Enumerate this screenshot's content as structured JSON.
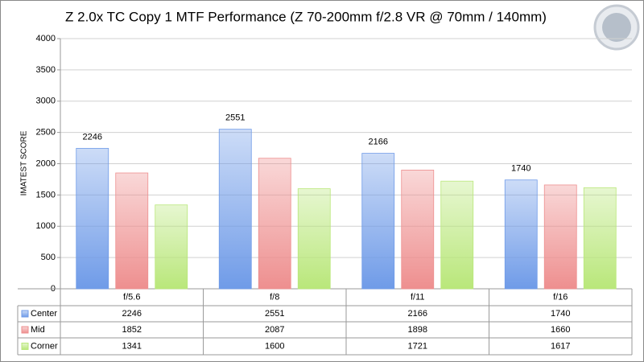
{
  "chart_data": {
    "type": "bar",
    "title": "Z 2.0x TC Copy 1 MTF Performance (Z 70-200mm f/2.8 VR @ 70mm / 140mm)",
    "y_label": "IMATEST SCORE",
    "categories": [
      "f/5.6",
      "f/8",
      "f/11",
      "f/16"
    ],
    "series": [
      {
        "name": "Center",
        "color": "#6f9be8",
        "values": [
          2246,
          2551,
          2166,
          1740
        ]
      },
      {
        "name": "Mid",
        "color": "#ee8f8f",
        "values": [
          1852,
          2087,
          1898,
          1660
        ]
      },
      {
        "name": "Corner",
        "color": "#b9e77a",
        "values": [
          1341,
          1600,
          1721,
          1617
        ]
      }
    ],
    "data_labels_series": 0,
    "ylim": [
      0,
      4000
    ],
    "yticks": [
      0,
      500,
      1000,
      1500,
      2000,
      2500,
      3000,
      3500,
      4000
    ],
    "grid": true
  }
}
